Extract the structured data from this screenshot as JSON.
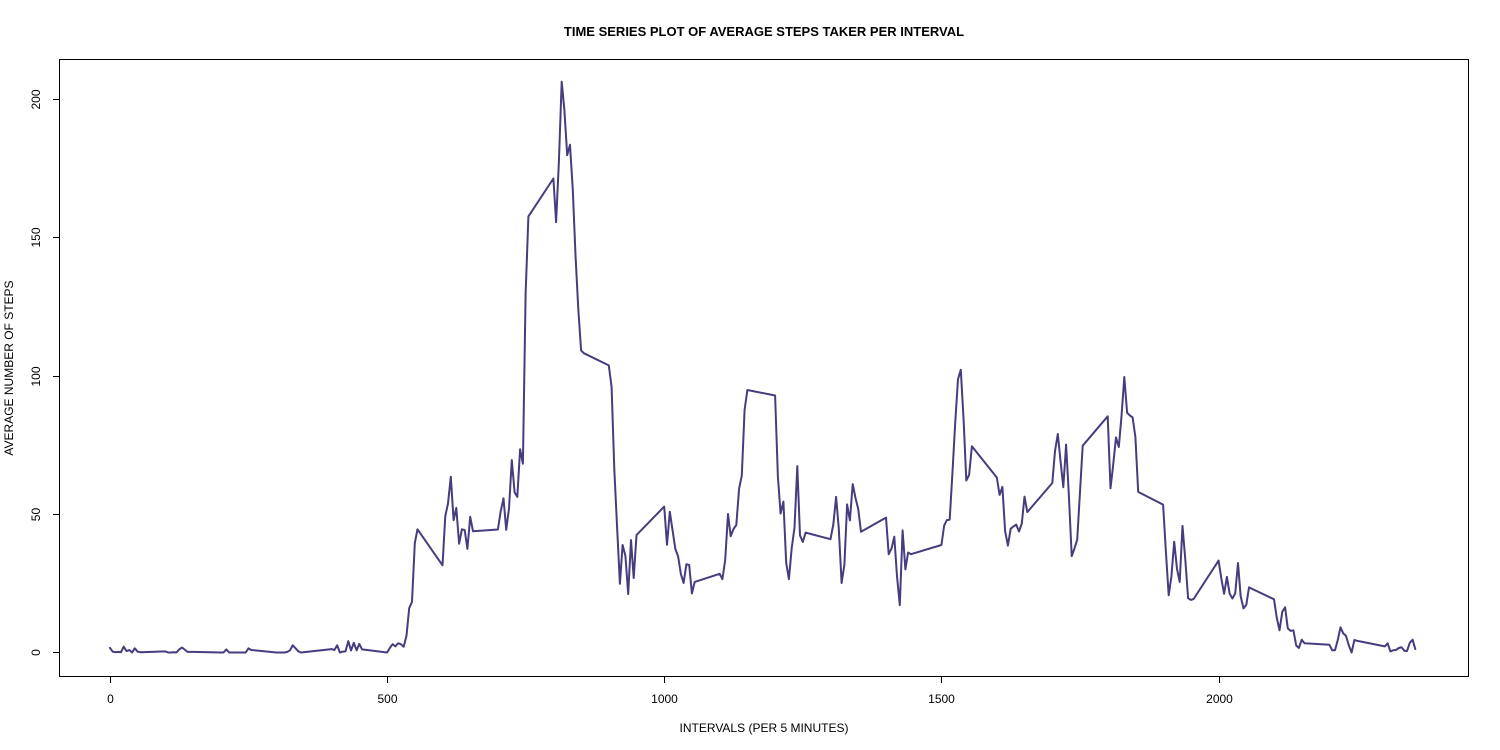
{
  "chart_data": {
    "type": "line",
    "title": "TIME SERIES PLOT OF AVERAGE STEPS TAKER PER INTERVAL",
    "xlabel": "INTERVALS (PER 5 MINUTES)",
    "ylabel": "AVERAGE NUMBER OF STEPS",
    "xlim": [
      -90,
      2450
    ],
    "ylim": [
      -8.5,
      214
    ],
    "xticks": [
      0,
      500,
      1000,
      1500,
      2000
    ],
    "yticks": [
      0,
      50,
      100,
      150,
      200
    ],
    "grid": false,
    "legend": "none",
    "line_color": "#453d7e",
    "series": [
      {
        "x": [
          0,
          5,
          10,
          15,
          20,
          25,
          30,
          35,
          40,
          45,
          50,
          55,
          100,
          105,
          110,
          115,
          120,
          125,
          130,
          140,
          150,
          200,
          205,
          210,
          215,
          245,
          250,
          255,
          300,
          305,
          310,
          315,
          320,
          325,
          330,
          340,
          345,
          355,
          400,
          405,
          410,
          415,
          420,
          425,
          430,
          435,
          440,
          445,
          450,
          455,
          500,
          505,
          510,
          515,
          520,
          525,
          530,
          535,
          540,
          545,
          550,
          555,
          600,
          605,
          610,
          615,
          620,
          625,
          630,
          635,
          640,
          645,
          650,
          655,
          700,
          705,
          710,
          715,
          720,
          725,
          730,
          735,
          740,
          745,
          750,
          755,
          800,
          805,
          810,
          815,
          820,
          825,
          830,
          835,
          840,
          845,
          850,
          855,
          900,
          905,
          910,
          915,
          920,
          925,
          930,
          935,
          940,
          945,
          950,
          1000,
          1005,
          1010,
          1015,
          1020,
          1025,
          1030,
          1035,
          1040,
          1045,
          1050,
          1055,
          1100,
          1105,
          1110,
          1115,
          1120,
          1125,
          1130,
          1135,
          1140,
          1145,
          1150,
          1200,
          1205,
          1210,
          1215,
          1220,
          1225,
          1230,
          1235,
          1240,
          1245,
          1250,
          1255,
          1300,
          1305,
          1310,
          1315,
          1320,
          1325,
          1330,
          1335,
          1340,
          1345,
          1350,
          1355,
          1400,
          1405,
          1410,
          1415,
          1420,
          1425,
          1430,
          1435,
          1440,
          1445,
          1500,
          1505,
          1510,
          1515,
          1520,
          1525,
          1530,
          1535,
          1540,
          1545,
          1550,
          1555,
          1600,
          1605,
          1610,
          1615,
          1620,
          1625,
          1630,
          1635,
          1640,
          1645,
          1650,
          1655,
          1700,
          1705,
          1710,
          1715,
          1720,
          1725,
          1730,
          1735,
          1740,
          1745,
          1750,
          1755,
          1800,
          1805,
          1810,
          1815,
          1820,
          1825,
          1830,
          1835,
          1840,
          1845,
          1850,
          1855,
          1900,
          1905,
          1910,
          1915,
          1920,
          1925,
          1930,
          1935,
          1940,
          1945,
          1950,
          1955,
          2000,
          2005,
          2010,
          2015,
          2020,
          2025,
          2030,
          2035,
          2040,
          2045,
          2050,
          2055,
          2100,
          2105,
          2110,
          2115,
          2120,
          2125,
          2130,
          2135,
          2140,
          2145,
          2150,
          2155,
          2200,
          2205,
          2210,
          2215,
          2220,
          2225,
          2230,
          2235,
          2240,
          2245,
          2250,
          2255,
          2300,
          2305,
          2310,
          2315,
          2320,
          2325,
          2330,
          2335,
          2340,
          2345,
          2350,
          2355
        ],
        "values": [
          1.7,
          0.3,
          0.1,
          0.2,
          0.1,
          2.1,
          0.5,
          0.9,
          0.0,
          1.5,
          0.3,
          0.1,
          0.4,
          0.0,
          0.0,
          0.1,
          0.0,
          1.1,
          1.8,
          0.2,
          0.2,
          0.0,
          0.0,
          1.1,
          0.0,
          0.0,
          1.5,
          0.9,
          0.0,
          0.0,
          0.0,
          0.0,
          0.2,
          0.8,
          2.6,
          0.4,
          0.0,
          0.2,
          1.2,
          0.9,
          2.6,
          0.0,
          0.3,
          0.4,
          4.1,
          0.7,
          3.5,
          0.8,
          3.1,
          1.1,
          0.0,
          1.6,
          3.0,
          2.2,
          3.3,
          3.0,
          2.1,
          6.1,
          16.0,
          18.3,
          39.5,
          44.5,
          31.5,
          49.3,
          53.8,
          63.5,
          47.8,
          52.2,
          39.3,
          44.5,
          44.2,
          37.4,
          49.0,
          43.8,
          44.4,
          51.0,
          55.7,
          44.3,
          52.0,
          69.5,
          57.8,
          56.2,
          73.4,
          68.2,
          129.4,
          157.5,
          171.2,
          155.4,
          177.3,
          206.2,
          195.9,
          179.6,
          183.4,
          167.0,
          143.5,
          124.0,
          109.1,
          108.1,
          103.7,
          95.9,
          66.2,
          45.2,
          24.8,
          38.8,
          34.9,
          21.1,
          40.6,
          26.9,
          42.4,
          52.7,
          38.9,
          50.8,
          44.3,
          37.4,
          34.7,
          28.3,
          25.1,
          31.9,
          31.6,
          21.3,
          25.5,
          28.4,
          26.5,
          33.4,
          50.0,
          42.0,
          44.6,
          46.0,
          59.2,
          63.9,
          87.7,
          94.8,
          92.8,
          63.4,
          50.2,
          54.5,
          32.4,
          26.5,
          37.7,
          45.1,
          67.3,
          42.3,
          39.9,
          43.3,
          40.9,
          46.2,
          56.2,
          44.7,
          25.1,
          31.7,
          53.5,
          47.7,
          60.8,
          55.8,
          51.9,
          43.6,
          48.7,
          35.5,
          37.5,
          41.8,
          27.5,
          17.1,
          44.1,
          30.0,
          36.1,
          35.5,
          38.8,
          45.9,
          47.8,
          48.0,
          65.3,
          82.9,
          98.7,
          102.1,
          84.0,
          62.1,
          64.1,
          74.5,
          63.2,
          56.9,
          59.8,
          43.9,
          38.6,
          44.7,
          45.5,
          46.2,
          43.7,
          46.6,
          56.3,
          50.7,
          61.2,
          72.7,
          78.9,
          68.9,
          59.7,
          75.1,
          56.5,
          34.8,
          37.5,
          40.7,
          58.0,
          74.7,
          85.3,
          59.3,
          67.8,
          77.7,
          74.2,
          85.3,
          99.5,
          86.6,
          85.6,
          84.9,
          77.8,
          58.0,
          53.4,
          36.3,
          20.7,
          27.4,
          40.0,
          30.2,
          25.5,
          45.7,
          33.5,
          19.6,
          19.0,
          19.3,
          33.2,
          26.8,
          21.2,
          27.3,
          21.3,
          19.5,
          21.3,
          32.3,
          20.2,
          15.9,
          17.2,
          23.5,
          19.2,
          12.5,
          8.0,
          14.7,
          16.3,
          8.7,
          7.8,
          8.0,
          2.5,
          1.6,
          4.6,
          3.3,
          2.8,
          0.8,
          0.8,
          4.4,
          9.1,
          6.9,
          6.0,
          2.6,
          0.0,
          4.5,
          4.2,
          4.0,
          2.2,
          3.3,
          0.4,
          0.8,
          0.9,
          1.6,
          1.9,
          0.6,
          0.5,
          3.5,
          4.6,
          1.2
        ]
      }
    ]
  }
}
